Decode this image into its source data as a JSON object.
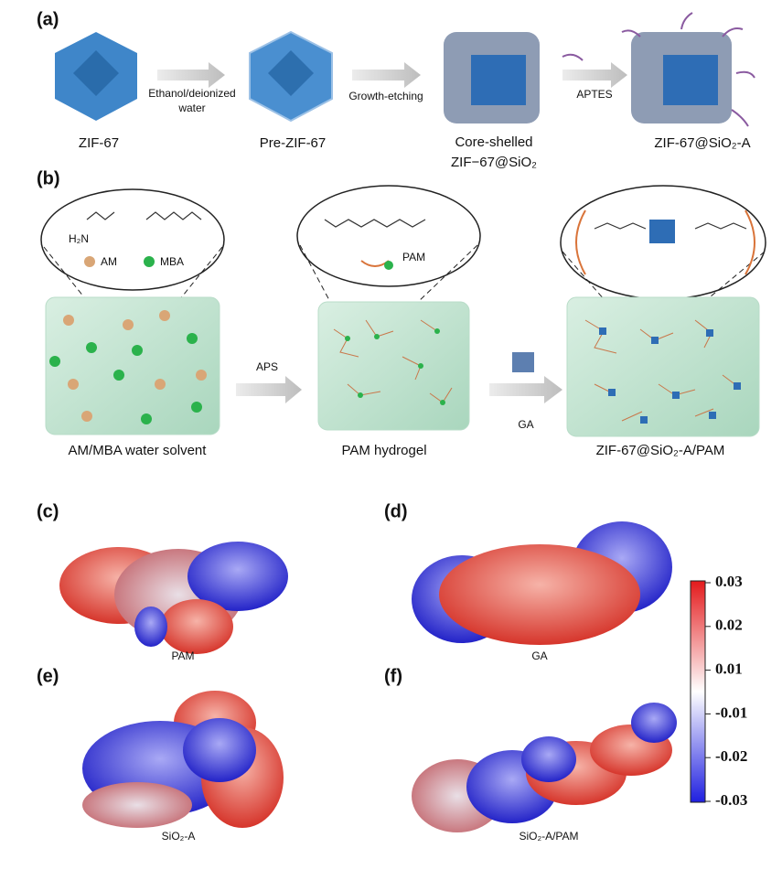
{
  "panel_a": {
    "label": "(a)",
    "items": [
      "ZIF-67",
      "Pre-ZIF-67",
      "Core-shelled",
      "ZIF−67@SiO₂",
      "ZIF-67@SiO₂-A"
    ],
    "arrows": [
      "Ethanol/deionized",
      "water",
      "Growth-etching",
      "APTES"
    ]
  },
  "panel_b": {
    "label": "(b)",
    "legend": [
      "H₂N",
      "AM",
      "MBA",
      "PAM"
    ],
    "arrows": [
      "APS",
      "GA"
    ],
    "items": [
      "AM/MBA water solvent",
      "PAM hydrogel",
      "ZIF-67@SiO₂-A/PAM"
    ]
  },
  "panels": [
    {
      "label": "(c)",
      "name": "PAM"
    },
    {
      "label": "(d)",
      "name": "GA"
    },
    {
      "label": "(e)",
      "name": "SiO₂-A"
    },
    {
      "label": "(f)",
      "name": "SiO₂-A/PAM"
    }
  ],
  "colorbar": {
    "ticks": [
      0.03,
      0.02,
      0.01,
      -0.01,
      -0.02,
      -0.03
    ]
  }
}
